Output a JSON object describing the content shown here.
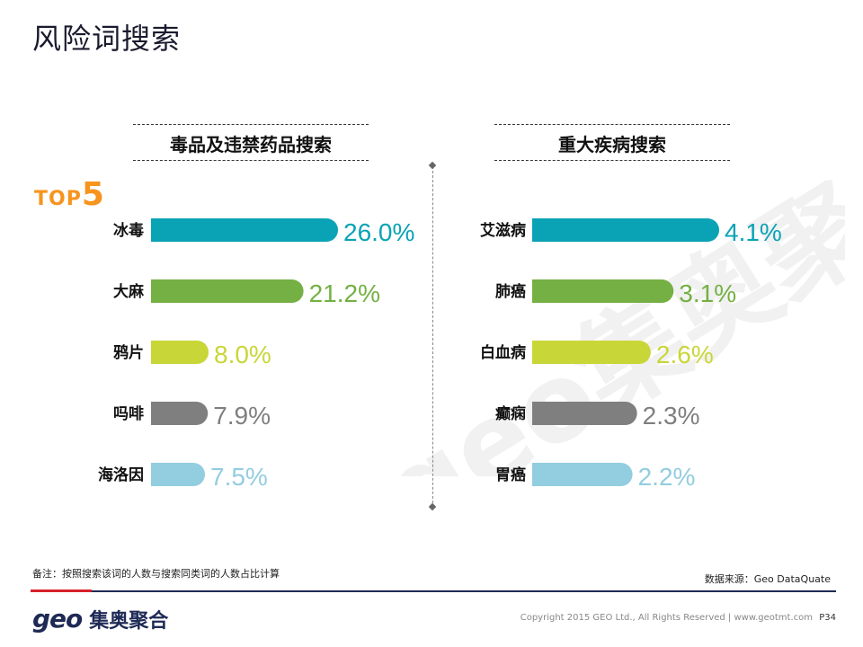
{
  "page": {
    "title": "风险词搜索",
    "top_badge_text": "TOP",
    "top_badge_num": "5",
    "watermark": "geo集奥聚合",
    "footnote": "备注：按照搜索该词的人数与搜索同类词的人数占比计算",
    "source": "数据来源：Geo DataQuate",
    "logo_geo": "geo",
    "logo_cn": "集奥聚合",
    "copyright": "Copyright 2015 GEO Ltd., All Rights Reserved  |  www.geotmt.com",
    "page_number": "P34"
  },
  "colors": [
    "#0aa3b5",
    "#74b043",
    "#c9d638",
    "#7f7f7f",
    "#93cde0"
  ],
  "chart_data": [
    {
      "type": "bar",
      "title": "毒品及违禁药品搜索",
      "categories": [
        "冰毒",
        "大麻",
        "鸦片",
        "吗啡",
        "海洛因"
      ],
      "values": [
        26.0,
        21.2,
        8.0,
        7.9,
        7.5
      ],
      "labels": [
        "26.0%",
        "21.2%",
        "8.0%",
        "7.9%",
        "7.5%"
      ],
      "unit": "%",
      "xlim": [
        0,
        26.0
      ]
    },
    {
      "type": "bar",
      "title": "重大疾病搜索",
      "categories": [
        "艾滋病",
        "肺癌",
        "白血病",
        "癫痫",
        "胃癌"
      ],
      "values": [
        4.1,
        3.1,
        2.6,
        2.3,
        2.2
      ],
      "labels": [
        "4.1%",
        "3.1%",
        "2.6%",
        "2.3%",
        "2.2%"
      ],
      "unit": "%",
      "xlim": [
        0,
        4.1
      ]
    }
  ]
}
